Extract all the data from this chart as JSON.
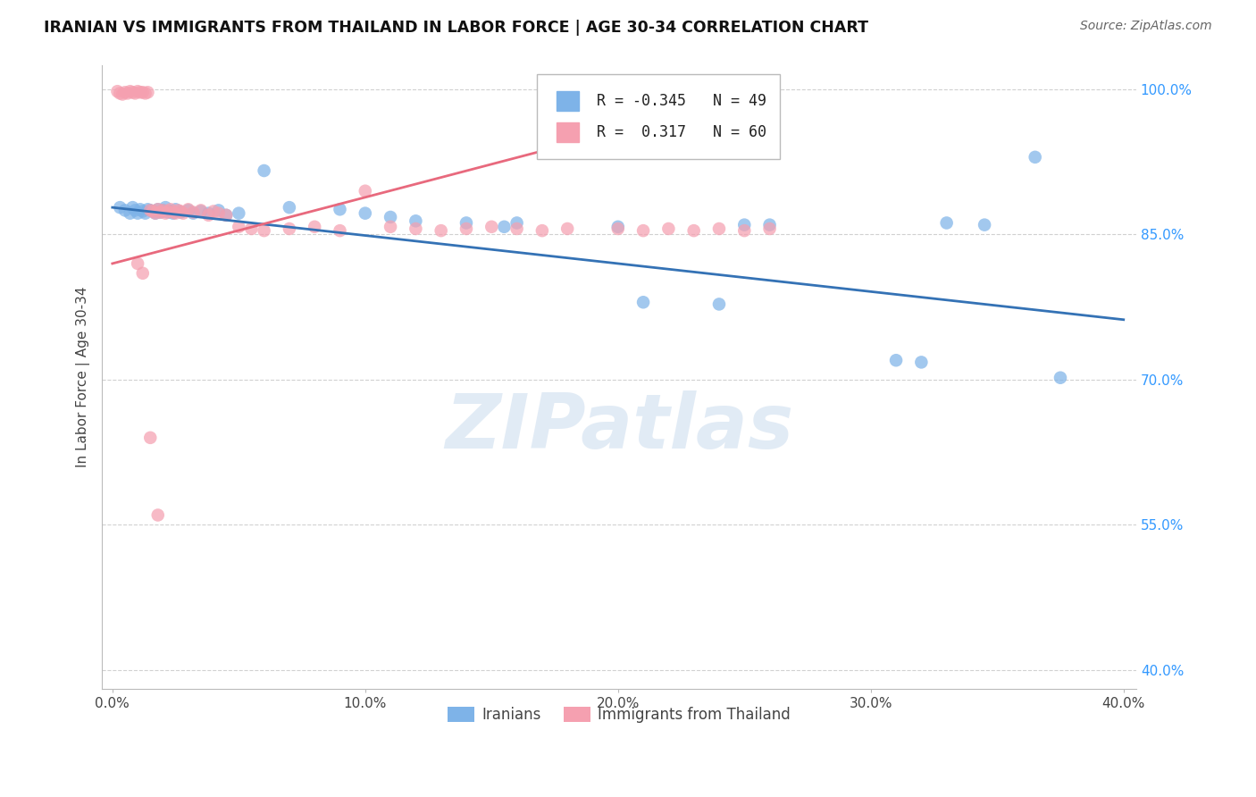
{
  "title": "IRANIAN VS IMMIGRANTS FROM THAILAND IN LABOR FORCE | AGE 30-34 CORRELATION CHART",
  "source": "Source: ZipAtlas.com",
  "ylabel": "In Labor Force | Age 30-34",
  "xlim": [
    -0.004,
    0.405
  ],
  "ylim": [
    0.38,
    1.025
  ],
  "yticks": [
    0.4,
    0.55,
    0.7,
    0.85,
    1.0
  ],
  "ytick_labels": [
    "40.0%",
    "55.0%",
    "70.0%",
    "85.0%",
    "100.0%"
  ],
  "xtick_labels": [
    "0.0%",
    "10.0%",
    "20.0%",
    "30.0%",
    "40.0%"
  ],
  "xticks": [
    0.0,
    0.1,
    0.2,
    0.3,
    0.4
  ],
  "legend_blue_r": "-0.345",
  "legend_blue_n": "49",
  "legend_pink_r": "0.317",
  "legend_pink_n": "60",
  "blue_color": "#7EB3E8",
  "pink_color": "#F5A0B0",
  "blue_line_color": "#3472B5",
  "pink_line_color": "#E8697D",
  "grid_color": "#CCCCCC",
  "blue_x": [
    0.003,
    0.005,
    0.007,
    0.008,
    0.009,
    0.01,
    0.011,
    0.012,
    0.013,
    0.014,
    0.015,
    0.016,
    0.017,
    0.018,
    0.019,
    0.02,
    0.021,
    0.022,
    0.023,
    0.024,
    0.025,
    0.027,
    0.03,
    0.032,
    0.035,
    0.038,
    0.042,
    0.045,
    0.05,
    0.06,
    0.07,
    0.09,
    0.1,
    0.11,
    0.12,
    0.14,
    0.155,
    0.16,
    0.2,
    0.21,
    0.24,
    0.25,
    0.26,
    0.31,
    0.32,
    0.33,
    0.345,
    0.365,
    0.375
  ],
  "blue_y": [
    0.878,
    0.875,
    0.872,
    0.878,
    0.875,
    0.872,
    0.876,
    0.874,
    0.872,
    0.876,
    0.875,
    0.874,
    0.872,
    0.876,
    0.873,
    0.875,
    0.878,
    0.873,
    0.874,
    0.872,
    0.876,
    0.873,
    0.875,
    0.872,
    0.874,
    0.872,
    0.875,
    0.87,
    0.872,
    0.916,
    0.878,
    0.876,
    0.872,
    0.868,
    0.864,
    0.862,
    0.858,
    0.862,
    0.858,
    0.78,
    0.778,
    0.86,
    0.86,
    0.72,
    0.718,
    0.862,
    0.86,
    0.93,
    0.702
  ],
  "pink_x": [
    0.002,
    0.003,
    0.004,
    0.005,
    0.006,
    0.007,
    0.008,
    0.009,
    0.01,
    0.011,
    0.012,
    0.013,
    0.014,
    0.015,
    0.016,
    0.017,
    0.018,
    0.019,
    0.02,
    0.021,
    0.022,
    0.023,
    0.024,
    0.025,
    0.026,
    0.027,
    0.028,
    0.03,
    0.032,
    0.035,
    0.038,
    0.04,
    0.042,
    0.045,
    0.05,
    0.055,
    0.06,
    0.07,
    0.08,
    0.09,
    0.1,
    0.11,
    0.12,
    0.13,
    0.14,
    0.15,
    0.16,
    0.17,
    0.18,
    0.2,
    0.21,
    0.22,
    0.23,
    0.24,
    0.25,
    0.26,
    0.01,
    0.012,
    0.015,
    0.018
  ],
  "pink_y": [
    0.998,
    0.996,
    0.995,
    0.997,
    0.996,
    0.998,
    0.997,
    0.996,
    0.998,
    0.997,
    0.997,
    0.996,
    0.997,
    0.875,
    0.874,
    0.872,
    0.876,
    0.873,
    0.875,
    0.872,
    0.874,
    0.876,
    0.873,
    0.872,
    0.875,
    0.874,
    0.872,
    0.876,
    0.873,
    0.875,
    0.87,
    0.874,
    0.872,
    0.87,
    0.858,
    0.856,
    0.854,
    0.856,
    0.858,
    0.854,
    0.895,
    0.858,
    0.856,
    0.854,
    0.856,
    0.858,
    0.856,
    0.854,
    0.856,
    0.856,
    0.854,
    0.856,
    0.854,
    0.856,
    0.854,
    0.856,
    0.82,
    0.81,
    0.64,
    0.56
  ],
  "blue_trend_x0": 0.0,
  "blue_trend_x1": 0.4,
  "blue_trend_y0": 0.878,
  "blue_trend_y1": 0.762,
  "pink_trend_x0": 0.0,
  "pink_trend_x1": 0.26,
  "pink_trend_y0": 0.82,
  "pink_trend_y1": 0.998
}
